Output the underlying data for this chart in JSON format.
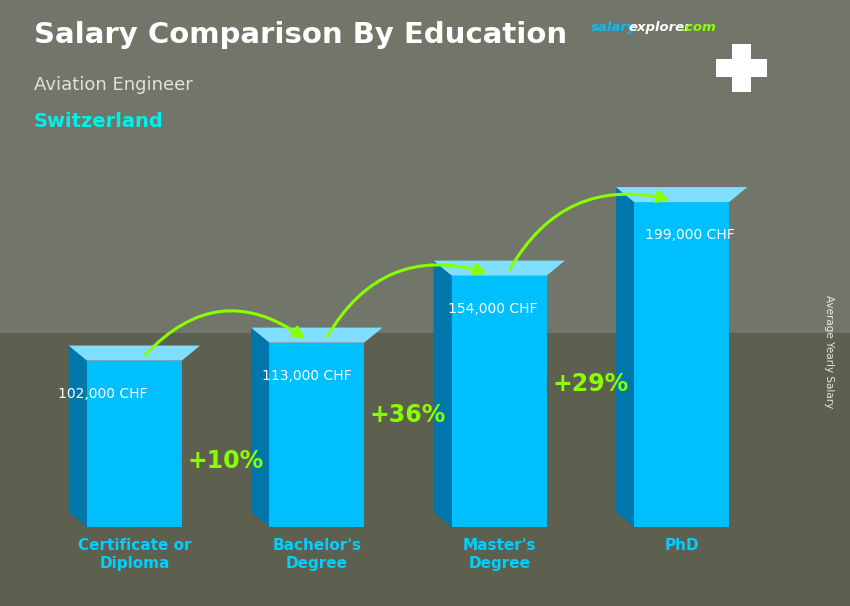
{
  "title": "Salary Comparison By Education",
  "subtitle": "Aviation Engineer",
  "country": "Switzerland",
  "ylabel": "Average Yearly Salary",
  "categories": [
    "Certificate or\nDiploma",
    "Bachelor's\nDegree",
    "Master's\nDegree",
    "PhD"
  ],
  "values": [
    102000,
    113000,
    154000,
    199000
  ],
  "value_labels": [
    "102,000 CHF",
    "113,000 CHF",
    "154,000 CHF",
    "199,000 CHF"
  ],
  "pct_changes": [
    "+10%",
    "+36%",
    "+29%"
  ],
  "bar_color_face": "#00BFFF",
  "bar_color_left": "#0077AA",
  "bar_color_top": "#80DFFF",
  "bar_width": 0.52,
  "bg_color": "#7a8070",
  "title_color": "#ffffff",
  "subtitle_color": "#e0e0e0",
  "country_color": "#00EFEF",
  "xlabel_color": "#00CFFF",
  "value_color": "#ffffff",
  "pct_color": "#88FF00",
  "arrow_color": "#88FF00",
  "site_salary_color": "#00BFFF",
  "site_explorer_color": "#ffffff",
  "site_com_color": "#88FF00",
  "swiss_flag_red": "#EE0000",
  "ylim": [
    0,
    230000
  ],
  "xlim": [
    -0.55,
    3.55
  ]
}
